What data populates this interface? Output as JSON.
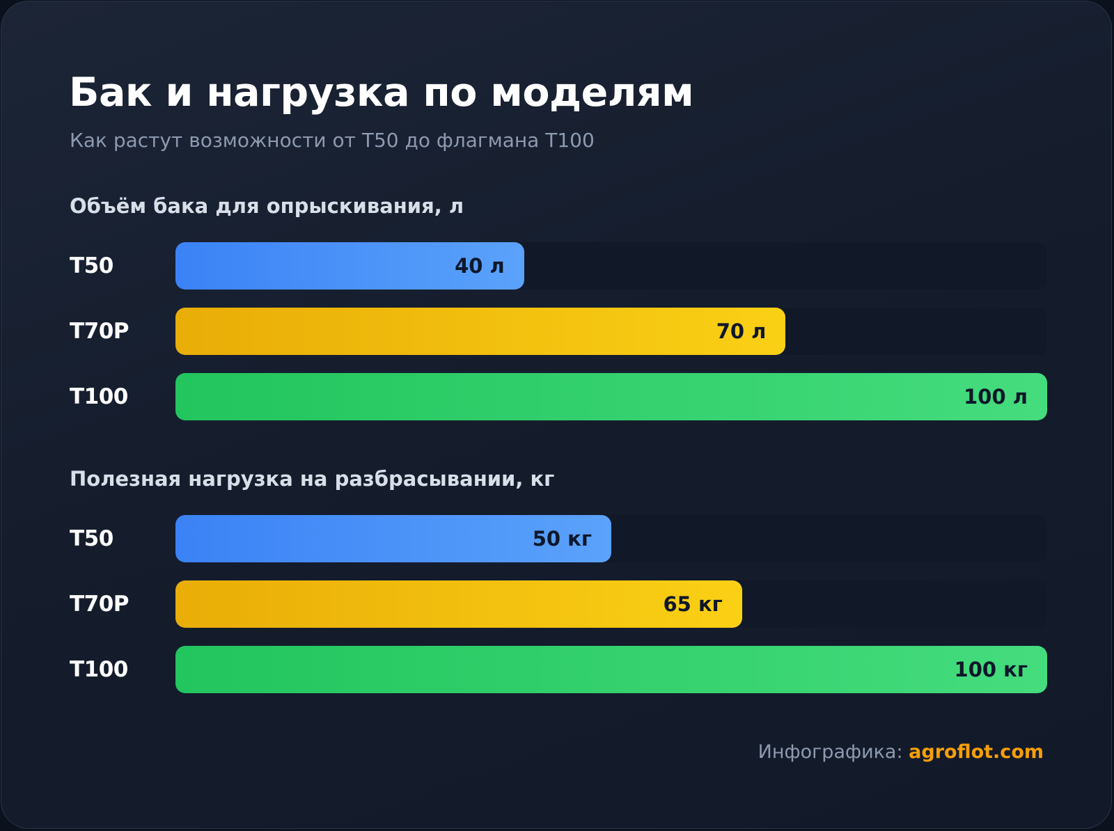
{
  "title": "Бак и нагрузка по моделям",
  "subtitle": "Как растут возможности от T50 до флагмана T100",
  "footer": {
    "label": "Инфографика:",
    "brand": "agroflot.com"
  },
  "colors": {
    "T50": "#3b82f6",
    "T70P": "#eab308",
    "T100": "#22c55e",
    "brand": "#f59e0b"
  },
  "chart_data": [
    {
      "type": "bar",
      "orientation": "horizontal",
      "title": "Объём бака для опрыскивания, л",
      "unit": "л",
      "categories": [
        "T50",
        "T70P",
        "T100"
      ],
      "values": [
        40,
        70,
        100
      ],
      "value_labels": [
        "40 л",
        "70 л",
        "100 л"
      ],
      "xlim": [
        0,
        100
      ]
    },
    {
      "type": "bar",
      "orientation": "horizontal",
      "title": "Полезная нагрузка на разбрасывании, кг",
      "unit": "кг",
      "categories": [
        "T50",
        "T70P",
        "T100"
      ],
      "values": [
        50,
        65,
        100
      ],
      "value_labels": [
        "50 кг",
        "65 кг",
        "100 кг"
      ],
      "xlim": [
        0,
        100
      ]
    }
  ]
}
